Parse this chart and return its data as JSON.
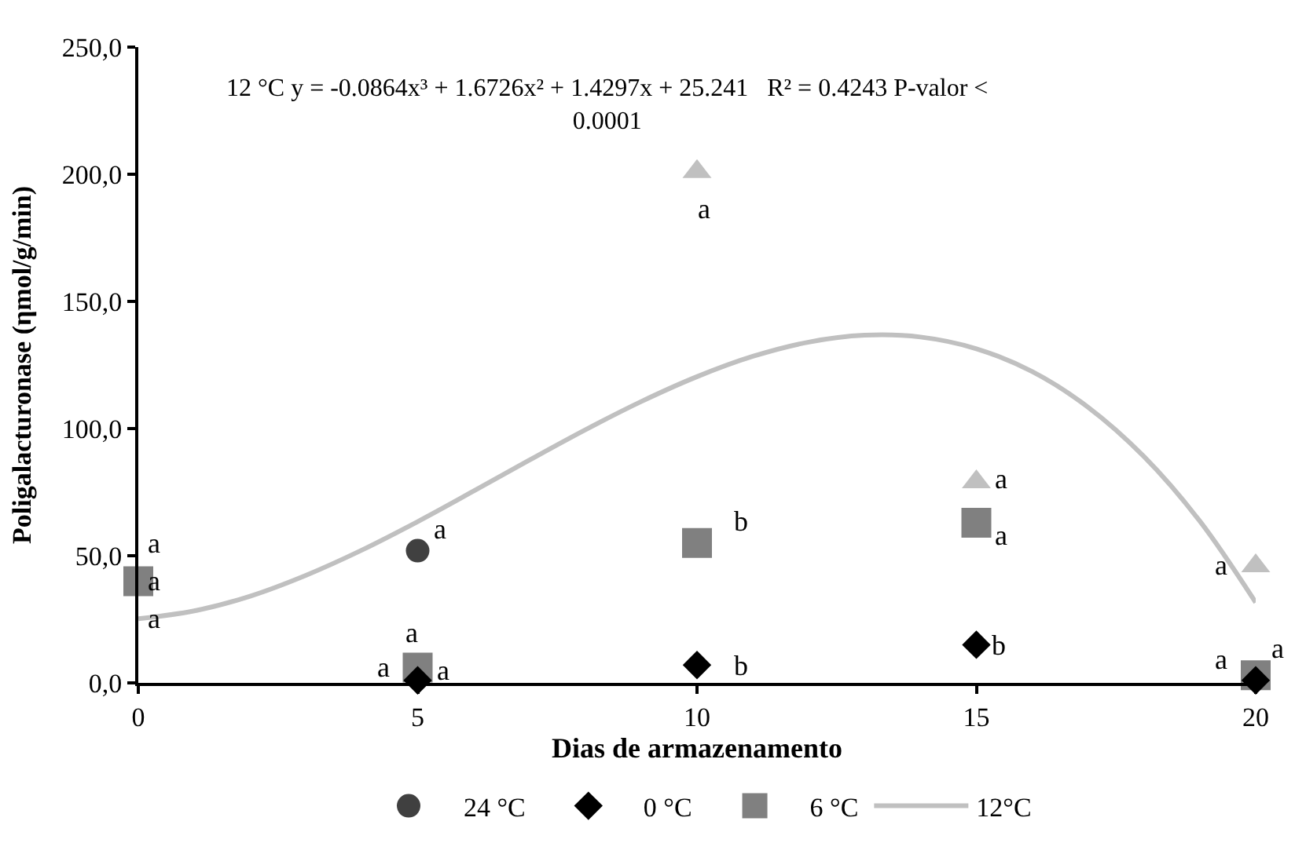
{
  "chart_data": {
    "type": "scatter",
    "xlabel": "Dias de armazenamento",
    "ylabel": "Poligalacturonase (ηmol/g/min)",
    "x": [
      0,
      5,
      10,
      15,
      20
    ],
    "xlim": [
      0,
      20
    ],
    "xticks": [
      0,
      5,
      10,
      15,
      20
    ],
    "ylim": [
      0,
      250
    ],
    "yticks": [
      {
        "value": 0,
        "label": "0,0"
      },
      {
        "value": 50,
        "label": "50,0"
      },
      {
        "value": 100,
        "label": "100,0"
      },
      {
        "value": 150,
        "label": "150,0"
      },
      {
        "value": 200,
        "label": "200,0"
      },
      {
        "value": 250,
        "label": "250,0"
      }
    ],
    "legend": "bottom",
    "series": [
      {
        "name": "24 °C",
        "color": "#404040",
        "marker": "circle",
        "values": [
          null,
          52,
          null,
          null,
          null
        ]
      },
      {
        "name": "0 °C",
        "color": "#000000",
        "marker": "diamond",
        "values": [
          null,
          1,
          7,
          15,
          1
        ]
      },
      {
        "name": "6 °C",
        "color": "#808080",
        "marker": "square",
        "values": [
          40,
          6,
          55,
          63,
          3
        ]
      },
      {
        "color": "#c0c0c0",
        "marker": "triangle",
        "values": [
          null,
          null,
          201,
          79,
          46
        ]
      },
      {
        "name": "12°C",
        "type": "line",
        "color": "#c0c0c0",
        "marker": "none",
        "line_style": "solid",
        "x": [
          0,
          1,
          2,
          3,
          4,
          5,
          6,
          7,
          8,
          9,
          10,
          11,
          12,
          13,
          14,
          15,
          16,
          17,
          18,
          19,
          20
        ],
        "values": [
          25.2,
          28.3,
          34.1,
          42.3,
          52.2,
          63.4,
          75.4,
          87.6,
          99.5,
          110.6,
          120.4,
          128.4,
          134.0,
          136.7,
          136.0,
          131.4,
          122.4,
          108.4,
          89.0,
          63.6,
          31.6
        ]
      }
    ],
    "annotations": [
      "12 °C y = -0.0864x³ + 1.6726x² + 1.4297x + 25.241   R² = 0.4243 P-valor <\n0.0001",
      {
        "text": "a",
        "x": 0,
        "y": 40
      },
      {
        "text": "a",
        "x": 0,
        "y": 40
      },
      {
        "text": "a",
        "x": 0,
        "y": 40
      },
      {
        "text": "a",
        "x": 5,
        "y": 52
      },
      {
        "text": "a",
        "x": 5,
        "y": 6
      },
      {
        "text": "a",
        "x": 5,
        "y": 6
      },
      {
        "text": "a",
        "x": 5,
        "y": 6
      },
      {
        "text": "a",
        "x": 10,
        "y": 201
      },
      {
        "text": "b",
        "x": 10,
        "y": 55
      },
      {
        "text": "b",
        "x": 10,
        "y": 7
      },
      {
        "text": "a",
        "x": 15,
        "y": 79
      },
      {
        "text": "a",
        "x": 15,
        "y": 63
      },
      {
        "text": "b",
        "x": 15,
        "y": 15
      },
      {
        "text": "a",
        "x": 20,
        "y": 46
      },
      {
        "text": "a",
        "x": 20,
        "y": 3
      },
      {
        "text": "a",
        "x": 20,
        "y": 1
      }
    ]
  }
}
